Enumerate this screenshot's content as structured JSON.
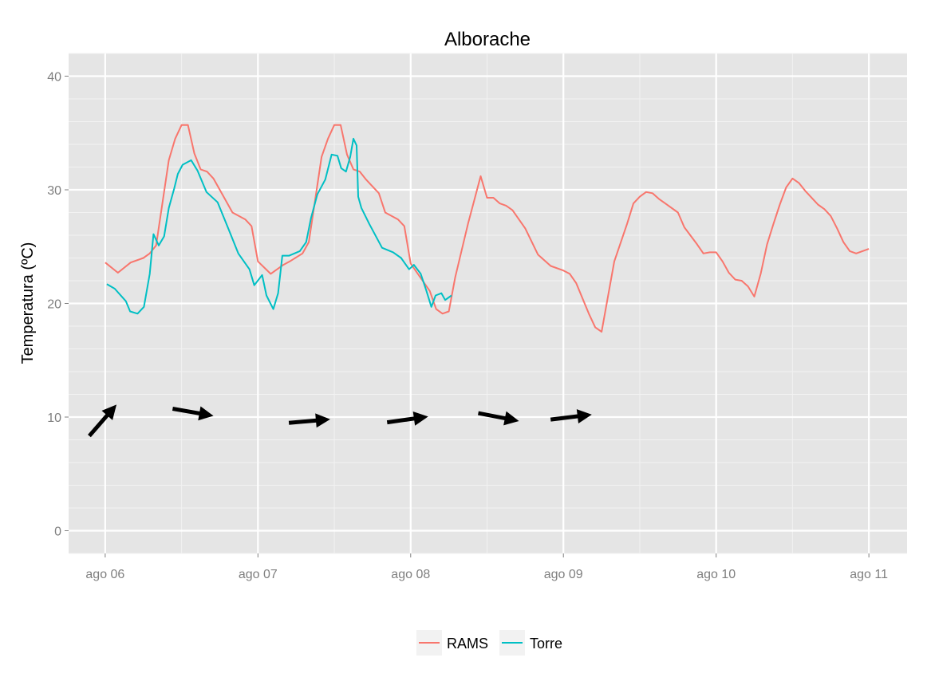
{
  "chart_data": {
    "type": "line",
    "title": "Alborache",
    "xlabel": "",
    "ylabel": "Temperatura (ºC)",
    "ylim": [
      -2,
      42
    ],
    "xlim": [
      "08-05 18:15",
      "08-11 06:00"
    ],
    "x_ticks": [
      {
        "x": "08-06 00:00",
        "label": "ago 06"
      },
      {
        "x": "08-07 00:00",
        "label": "ago 07"
      },
      {
        "x": "08-08 00:00",
        "label": "ago 08"
      },
      {
        "x": "08-09 00:00",
        "label": "ago 09"
      },
      {
        "x": "08-10 00:00",
        "label": "ago 10"
      },
      {
        "x": "08-11 00:00",
        "label": "ago 11"
      }
    ],
    "y_ticks": [
      0,
      10,
      20,
      30,
      40
    ],
    "grid": true,
    "background": "#e5e5e5",
    "legend": {
      "position": "bottom"
    },
    "series": [
      {
        "name": "RAMS",
        "color": "#f8766d",
        "points": [
          [
            "08-06 00:00",
            23.6
          ],
          [
            "08-06 02:00",
            22.7
          ],
          [
            "08-06 04:00",
            23.6
          ],
          [
            "08-06 06:00",
            24.0
          ],
          [
            "08-06 07:00",
            24.4
          ],
          [
            "08-06 08:00",
            25.1
          ],
          [
            "08-06 10:00",
            32.6
          ],
          [
            "08-06 11:00",
            34.5
          ],
          [
            "08-06 12:00",
            35.7
          ],
          [
            "08-06 13:00",
            35.7
          ],
          [
            "08-06 14:00",
            33.2
          ],
          [
            "08-06 15:00",
            31.8
          ],
          [
            "08-06 16:00",
            31.6
          ],
          [
            "08-06 17:00",
            31.0
          ],
          [
            "08-06 18:00",
            30.0
          ],
          [
            "08-06 20:00",
            28.0
          ],
          [
            "08-06 22:00",
            27.4
          ],
          [
            "08-06 23:00",
            26.8
          ],
          [
            "08-07 00:00",
            23.7
          ],
          [
            "08-07 02:00",
            22.6
          ],
          [
            "08-07 04:00",
            23.4
          ],
          [
            "08-07 05:00",
            23.7
          ],
          [
            "08-07 07:00",
            24.4
          ],
          [
            "08-07 08:00",
            25.4
          ],
          [
            "08-07 10:00",
            32.9
          ],
          [
            "08-07 11:00",
            34.5
          ],
          [
            "08-07 12:00",
            35.7
          ],
          [
            "08-07 13:00",
            35.7
          ],
          [
            "08-07 14:00",
            33.1
          ],
          [
            "08-07 15:00",
            31.8
          ],
          [
            "08-07 16:00",
            31.6
          ],
          [
            "08-07 17:00",
            30.9
          ],
          [
            "08-07 19:00",
            29.7
          ],
          [
            "08-07 20:00",
            28.0
          ],
          [
            "08-07 22:00",
            27.4
          ],
          [
            "08-07 23:00",
            26.8
          ],
          [
            "08-08 00:00",
            23.5
          ],
          [
            "08-08 03:00",
            21.1
          ],
          [
            "08-08 04:00",
            19.5
          ],
          [
            "08-08 05:00",
            19.1
          ],
          [
            "08-08 06:00",
            19.3
          ],
          [
            "08-08 07:00",
            22.3
          ],
          [
            "08-08 09:00",
            27.0
          ],
          [
            "08-08 11:00",
            31.2
          ],
          [
            "08-08 12:00",
            29.3
          ],
          [
            "08-08 13:00",
            29.3
          ],
          [
            "08-08 14:00",
            28.8
          ],
          [
            "08-08 15:00",
            28.6
          ],
          [
            "08-08 16:00",
            28.2
          ],
          [
            "08-08 18:00",
            26.6
          ],
          [
            "08-08 20:00",
            24.3
          ],
          [
            "08-08 22:00",
            23.3
          ],
          [
            "08-09 00:00",
            22.9
          ],
          [
            "08-09 01:00",
            22.6
          ],
          [
            "08-09 02:00",
            21.8
          ],
          [
            "08-09 04:00",
            19.1
          ],
          [
            "08-09 05:00",
            17.9
          ],
          [
            "08-09 06:00",
            17.5
          ],
          [
            "08-09 08:00",
            23.7
          ],
          [
            "08-09 10:00",
            27.0
          ],
          [
            "08-09 11:00",
            28.8
          ],
          [
            "08-09 12:00",
            29.4
          ],
          [
            "08-09 13:00",
            29.8
          ],
          [
            "08-09 14:00",
            29.7
          ],
          [
            "08-09 15:00",
            29.2
          ],
          [
            "08-09 16:00",
            28.8
          ],
          [
            "08-09 18:00",
            28.0
          ],
          [
            "08-09 19:00",
            26.7
          ],
          [
            "08-09 21:00",
            25.2
          ],
          [
            "08-09 22:00",
            24.4
          ],
          [
            "08-09 23:00",
            24.5
          ],
          [
            "08-10 00:00",
            24.5
          ],
          [
            "08-10 01:00",
            23.7
          ],
          [
            "08-10 02:00",
            22.7
          ],
          [
            "08-10 03:00",
            22.1
          ],
          [
            "08-10 04:00",
            22.0
          ],
          [
            "08-10 05:00",
            21.5
          ],
          [
            "08-10 06:00",
            20.6
          ],
          [
            "08-10 07:00",
            22.6
          ],
          [
            "08-10 08:00",
            25.2
          ],
          [
            "08-10 09:00",
            27.0
          ],
          [
            "08-10 10:00",
            28.7
          ],
          [
            "08-10 11:00",
            30.2
          ],
          [
            "08-10 12:00",
            31.0
          ],
          [
            "08-10 13:00",
            30.6
          ],
          [
            "08-10 14:00",
            29.9
          ],
          [
            "08-10 16:00",
            28.7
          ],
          [
            "08-10 17:00",
            28.3
          ],
          [
            "08-10 18:00",
            27.7
          ],
          [
            "08-10 19:00",
            26.6
          ],
          [
            "08-10 20:00",
            25.4
          ],
          [
            "08-10 21:00",
            24.6
          ],
          [
            "08-10 22:00",
            24.4
          ],
          [
            "08-11 00:00",
            24.8
          ]
        ]
      },
      {
        "name": "Torre",
        "color": "#00bfc4",
        "points": [
          [
            "08-06 00:15",
            21.7
          ],
          [
            "08-06 01:30",
            21.3
          ],
          [
            "08-06 03:15",
            20.2
          ],
          [
            "08-06 03:55",
            19.3
          ],
          [
            "08-06 05:05",
            19.1
          ],
          [
            "08-06 06:05",
            19.7
          ],
          [
            "08-06 07:00",
            22.6
          ],
          [
            "08-06 07:35",
            26.1
          ],
          [
            "08-06 08:25",
            25.1
          ],
          [
            "08-06 09:15",
            25.9
          ],
          [
            "08-06 10:00",
            28.4
          ],
          [
            "08-06 10:50",
            30.1
          ],
          [
            "08-06 11:25",
            31.4
          ],
          [
            "08-06 12:10",
            32.2
          ],
          [
            "08-06 13:30",
            32.6
          ],
          [
            "08-06 14:30",
            31.7
          ],
          [
            "08-06 15:55",
            29.8
          ],
          [
            "08-06 17:40",
            28.9
          ],
          [
            "08-06 19:20",
            26.6
          ],
          [
            "08-06 20:55",
            24.4
          ],
          [
            "08-06 22:40",
            23.0
          ],
          [
            "08-06 23:25",
            21.6
          ],
          [
            "08-07 00:40",
            22.5
          ],
          [
            "08-07 01:20",
            20.7
          ],
          [
            "08-07 02:25",
            19.5
          ],
          [
            "08-07 03:10",
            20.9
          ],
          [
            "08-07 03:50",
            24.2
          ],
          [
            "08-07 04:55",
            24.2
          ],
          [
            "08-07 06:35",
            24.6
          ],
          [
            "08-07 07:35",
            25.4
          ],
          [
            "08-07 08:20",
            27.5
          ],
          [
            "08-07 09:20",
            29.6
          ],
          [
            "08-07 10:35",
            30.9
          ],
          [
            "08-07 11:35",
            33.1
          ],
          [
            "08-07 12:30",
            33.0
          ],
          [
            "08-07 13:05",
            31.9
          ],
          [
            "08-07 13:50",
            31.6
          ],
          [
            "08-07 14:30",
            32.9
          ],
          [
            "08-07 15:00",
            34.5
          ],
          [
            "08-07 15:30",
            33.9
          ],
          [
            "08-07 15:45",
            29.4
          ],
          [
            "08-07 16:15",
            28.4
          ],
          [
            "08-07 17:30",
            27.0
          ],
          [
            "08-07 19:30",
            24.9
          ],
          [
            "08-07 21:15",
            24.5
          ],
          [
            "08-07 22:30",
            24.0
          ],
          [
            "08-07 23:45",
            23.0
          ],
          [
            "08-08 00:30",
            23.4
          ],
          [
            "08-08 01:35",
            22.6
          ],
          [
            "08-08 02:25",
            21.2
          ],
          [
            "08-08 03:15",
            19.7
          ],
          [
            "08-08 03:55",
            20.7
          ],
          [
            "08-08 04:50",
            20.9
          ],
          [
            "08-08 05:25",
            20.3
          ],
          [
            "08-08 06:25",
            20.7
          ]
        ]
      }
    ],
    "annotations": {
      "wind_arrows": [
        {
          "direction_deg": -49
        },
        {
          "direction_deg": 10
        },
        {
          "direction_deg": -5
        },
        {
          "direction_deg": -8
        },
        {
          "direction_deg": 11
        },
        {
          "direction_deg": -7
        }
      ]
    }
  }
}
